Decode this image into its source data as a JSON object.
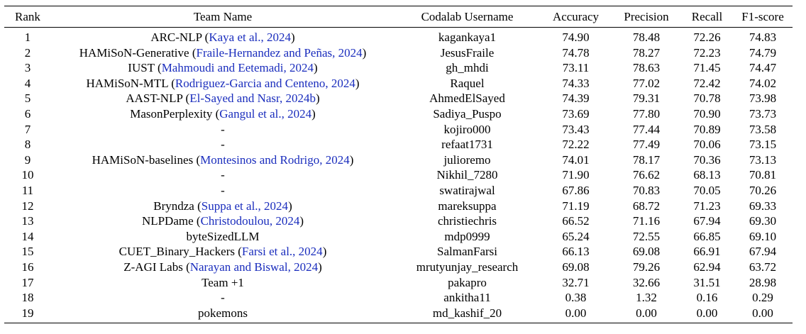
{
  "headers": {
    "rank": "Rank",
    "team": "Team Name",
    "user": "Codalab Username",
    "accuracy": "Accuracy",
    "precision": "Precision",
    "recall": "Recall",
    "f1": "F1-score"
  },
  "rows": [
    {
      "rank": "1",
      "team": "ARC-NLP",
      "cite": "Kaya et al., 2024",
      "user": "kagankaya1",
      "accuracy": "74.90",
      "precision": "78.48",
      "recall": "72.26",
      "f1": "74.83",
      "best": true
    },
    {
      "rank": "2",
      "team": "HAMiSoN-Generative",
      "cite": "Fraile-Hernandez and Peñas, 2024",
      "user": "JesusFraile",
      "accuracy": "74.78",
      "precision": "78.27",
      "recall": "72.23",
      "f1": "74.79"
    },
    {
      "rank": "3",
      "team": "IUST",
      "cite": "Mahmoudi and Eetemadi, 2024",
      "user": "gh_mhdi",
      "accuracy": "73.11",
      "precision": "78.63",
      "recall": "71.45",
      "f1": "74.47"
    },
    {
      "rank": "4",
      "team": "HAMiSoN-MTL",
      "cite": "Rodriguez-Garcia and Centeno, 2024",
      "user": "Raquel",
      "accuracy": "74.33",
      "precision": "77.02",
      "recall": "72.42",
      "f1": "74.02"
    },
    {
      "rank": "5",
      "team": "AAST-NLP",
      "cite": "El-Sayed and Nasr, 2024b",
      "user": "AhmedElSayed",
      "accuracy": "74.39",
      "precision": "79.31",
      "recall": "70.78",
      "f1": "73.98"
    },
    {
      "rank": "6",
      "team": "MasonPerplexity",
      "cite": "Gangul et al., 2024",
      "user": "Sadiya_Puspo",
      "accuracy": "73.69",
      "precision": "77.80",
      "recall": "70.90",
      "f1": "73.73"
    },
    {
      "rank": "7",
      "team": "-",
      "cite": "",
      "user": "kojiro000",
      "accuracy": "73.43",
      "precision": "77.44",
      "recall": "70.89",
      "f1": "73.58"
    },
    {
      "rank": "8",
      "team": "-",
      "cite": "",
      "user": "refaat1731",
      "accuracy": "72.22",
      "precision": "77.49",
      "recall": "70.06",
      "f1": "73.15"
    },
    {
      "rank": "9",
      "team": "HAMiSoN-baselines",
      "cite": "Montesinos and Rodrigo, 2024",
      "user": "julioremo",
      "accuracy": "74.01",
      "precision": "78.17",
      "recall": "70.36",
      "f1": "73.13"
    },
    {
      "rank": "10",
      "team": "-",
      "cite": "",
      "user": "Nikhil_7280",
      "accuracy": "71.90",
      "precision": "76.62",
      "recall": "68.13",
      "f1": "70.81"
    },
    {
      "rank": "11",
      "team": "-",
      "cite": "",
      "user": "swatirajwal",
      "accuracy": "67.86",
      "precision": "70.83",
      "recall": "70.05",
      "f1": "70.26"
    },
    {
      "rank": "12",
      "team": "Bryndza",
      "cite": "Suppa et al., 2024",
      "user": "mareksuppa",
      "accuracy": "71.19",
      "precision": "68.72",
      "recall": "71.23",
      "f1": "69.33"
    },
    {
      "rank": "13",
      "team": "NLPDame",
      "cite": "Christodoulou, 2024",
      "user": "christiechris",
      "accuracy": "66.52",
      "precision": "71.16",
      "recall": "67.94",
      "f1": "69.30"
    },
    {
      "rank": "14",
      "team": "byteSizedLLM",
      "cite": "",
      "user": "mdp0999",
      "accuracy": "65.24",
      "precision": "72.55",
      "recall": "66.85",
      "f1": "69.10"
    },
    {
      "rank": "15",
      "team": "CUET_Binary_Hackers",
      "cite": "Farsi et al., 2024",
      "user": "SalmanFarsi",
      "accuracy": "66.13",
      "precision": "69.08",
      "recall": "66.91",
      "f1": "67.94"
    },
    {
      "rank": "16",
      "team": "Z-AGI Labs",
      "cite": "Narayan and Biswal, 2024",
      "user": "mrutyunjay_research",
      "accuracy": "69.08",
      "precision": "79.26",
      "recall": "62.94",
      "f1": "63.72"
    },
    {
      "rank": "17",
      "team": "Team +1",
      "cite": "",
      "user": "pakapro",
      "accuracy": "32.71",
      "precision": "32.66",
      "recall": "31.51",
      "f1": "28.98"
    },
    {
      "rank": "18",
      "team": "-",
      "cite": "",
      "user": "ankitha11",
      "accuracy": "0.38",
      "precision": "1.32",
      "recall": "0.16",
      "f1": "0.29"
    },
    {
      "rank": "19",
      "team": "pokemons",
      "cite": "",
      "user": "md_kashif_20",
      "accuracy": "0.00",
      "precision": "0.00",
      "recall": "0.00",
      "f1": "0.00"
    }
  ],
  "colors": {
    "citation": "#1a2dbd"
  }
}
